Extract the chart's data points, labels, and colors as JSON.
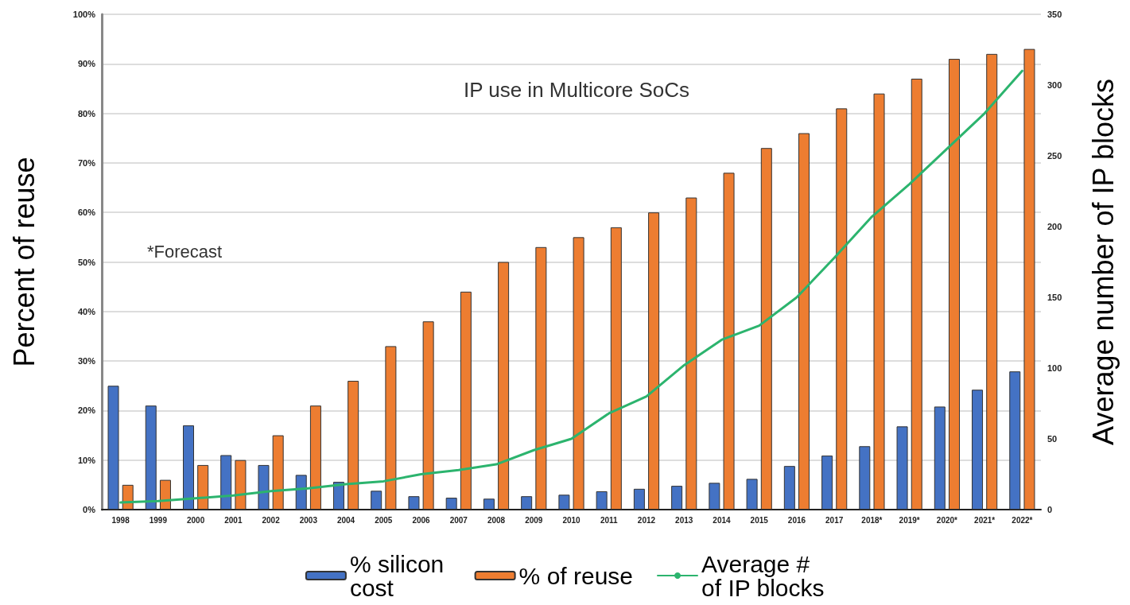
{
  "chart_data": {
    "type": "bar",
    "title": "IP use in Multicore SoCs",
    "ylabel": "Percent of reuse",
    "y2label": "Average number of IP blocks",
    "annotations": [
      "*Forecast"
    ],
    "categories": [
      "1998",
      "1999",
      "2000",
      "2001",
      "2002",
      "2003",
      "2004",
      "2005",
      "2006",
      "2007",
      "2008",
      "2009",
      "2010",
      "2011",
      "2012",
      "2013",
      "2014",
      "2015",
      "2016",
      "2017",
      "2018*",
      "2019*",
      "2020*",
      "2021*",
      "2022*"
    ],
    "series": [
      {
        "name": "% silicon cost",
        "color": "#4472c4",
        "values": [
          25,
          21,
          17,
          11,
          9,
          7,
          5.6,
          3.8,
          2.7,
          2.4,
          2.2,
          2.7,
          3.0,
          3.7,
          4.2,
          4.8,
          5.4,
          6.2,
          8.8,
          10.9,
          12.8,
          16.8,
          20.8,
          24.2,
          27.9
        ]
      },
      {
        "name": "% of reuse",
        "color": "#ed7d31",
        "values": [
          5,
          6,
          9,
          10,
          15,
          21,
          26,
          33,
          38,
          44,
          50,
          53,
          55,
          57,
          60,
          63,
          68,
          73,
          76,
          81,
          84,
          87,
          91,
          92,
          93
        ]
      },
      {
        "name": "Average # of IP blocks",
        "type": "line",
        "axis": "y2",
        "color": "#2cb46e",
        "values": [
          5,
          6,
          8,
          10,
          13,
          15,
          18,
          20,
          25,
          28,
          32,
          42,
          50,
          68,
          80,
          102,
          120,
          130,
          150,
          178,
          207,
          230,
          255,
          280,
          310
        ]
      }
    ],
    "ylim": [
      0,
      100
    ],
    "yticks": [
      {
        "value": 0,
        "label": "0%"
      },
      {
        "value": 10,
        "label": "10%"
      },
      {
        "value": 20,
        "label": "20%"
      },
      {
        "value": 30,
        "label": "30%"
      },
      {
        "value": 40,
        "label": "40%"
      },
      {
        "value": 50,
        "label": "50%"
      },
      {
        "value": 60,
        "label": "60%"
      },
      {
        "value": 70,
        "label": "70%"
      },
      {
        "value": 80,
        "label": "80%"
      },
      {
        "value": 90,
        "label": "90%"
      },
      {
        "value": 100,
        "label": "100%"
      }
    ],
    "y2lim": [
      0,
      350
    ],
    "y2ticks": [
      0,
      50,
      100,
      150,
      200,
      250,
      300,
      350
    ],
    "grid": "y",
    "legend": "bottom",
    "marker": "none",
    "line_style": "solid"
  }
}
